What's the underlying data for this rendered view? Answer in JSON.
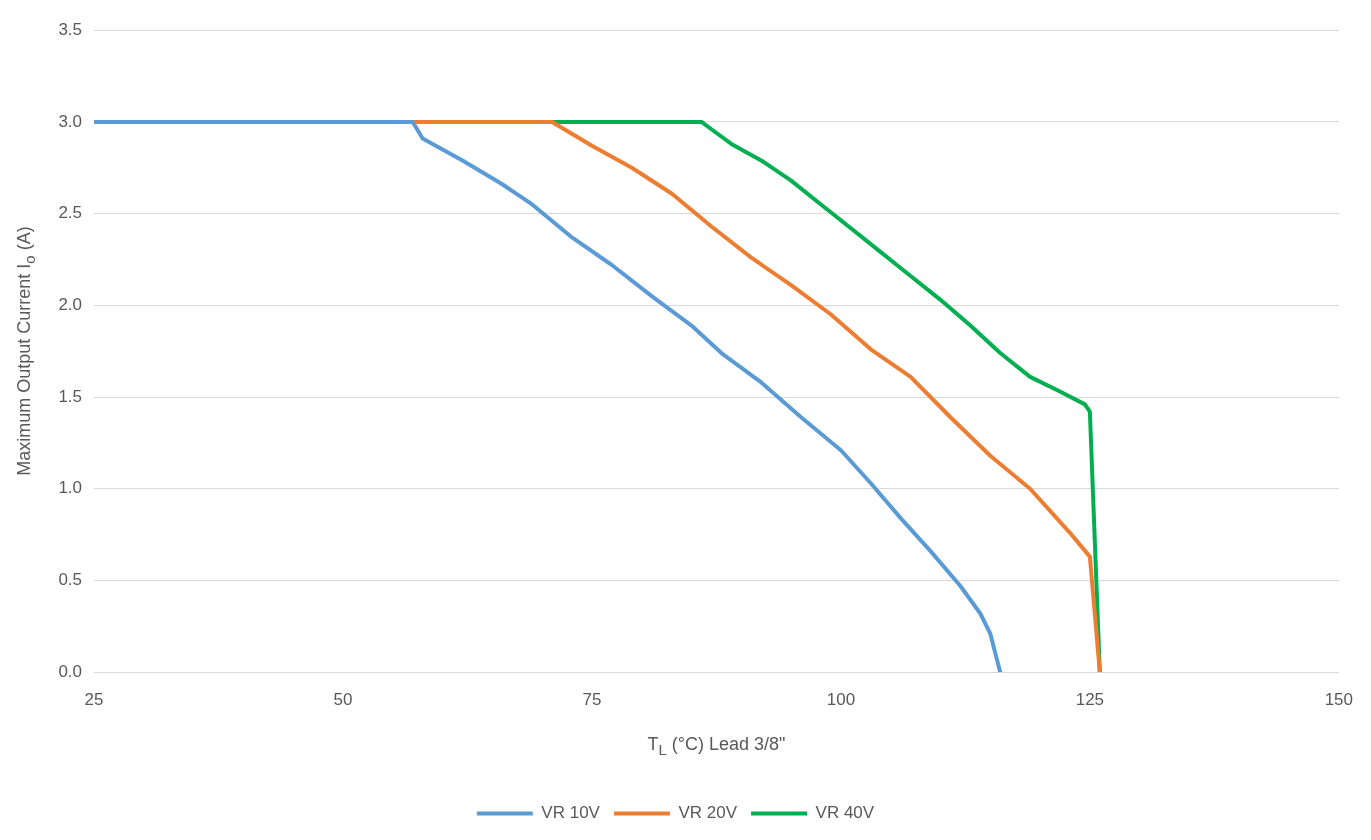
{
  "chart_data": {
    "type": "line",
    "xlabel": "T$_{L}$ (°C) Lead 3/8\"",
    "ylabel": "Maximum Output Current I$_{o}$ (A)",
    "xlim": [
      25,
      150
    ],
    "xticks": [
      25,
      50,
      75,
      100,
      125,
      150
    ],
    "ylim": [
      0,
      3.5
    ],
    "yticks": [
      {
        "value": 0,
        "label": "0.0"
      },
      {
        "value": 0.5,
        "label": "0.5"
      },
      {
        "value": 1,
        "label": "1.0"
      },
      {
        "value": 1.5,
        "label": "1.5"
      },
      {
        "value": 2,
        "label": "2.0"
      },
      {
        "value": 2.5,
        "label": "2.5"
      },
      {
        "value": 3,
        "label": "3.0"
      },
      {
        "value": 3.5,
        "label": "3.5"
      }
    ],
    "grid": "y",
    "legend": "bottom",
    "marker": "none",
    "line_style": "solid",
    "series": [
      {
        "name": "VR 10V",
        "color": "#5b9bd5",
        "x": [
          25,
          57,
          58,
          62,
          66,
          69,
          73,
          77,
          81,
          85,
          88,
          92,
          96,
          100,
          103,
          106,
          109,
          112,
          114,
          115,
          116
        ],
        "values": [
          3,
          3,
          2.91,
          2.79,
          2.66,
          2.55,
          2.37,
          2.22,
          2.05,
          1.89,
          1.74,
          1.58,
          1.39,
          1.21,
          1.03,
          0.84,
          0.66,
          0.47,
          0.32,
          0.21,
          0
        ]
      },
      {
        "name": "VR 20V",
        "color": "#ed7d31",
        "x": [
          25,
          71,
          75,
          79,
          83,
          87,
          91,
          95,
          99,
          103,
          107,
          111,
          115,
          119,
          123,
          125,
          126
        ],
        "values": [
          3,
          3,
          2.87,
          2.75,
          2.61,
          2.43,
          2.26,
          2.11,
          1.95,
          1.76,
          1.61,
          1.39,
          1.18,
          1,
          0.76,
          0.63,
          0
        ]
      },
      {
        "name": "VR 40V",
        "color": "#00b050",
        "x": [
          25,
          86,
          87,
          89,
          92,
          95,
          98,
          101,
          104,
          107,
          110,
          113,
          116,
          119,
          122,
          124.5,
          125,
          126
        ],
        "values": [
          3,
          3,
          2.96,
          2.88,
          2.79,
          2.68,
          2.55,
          2.42,
          2.29,
          2.16,
          2.03,
          1.89,
          1.74,
          1.61,
          1.53,
          1.46,
          1.42,
          0
        ]
      }
    ]
  }
}
